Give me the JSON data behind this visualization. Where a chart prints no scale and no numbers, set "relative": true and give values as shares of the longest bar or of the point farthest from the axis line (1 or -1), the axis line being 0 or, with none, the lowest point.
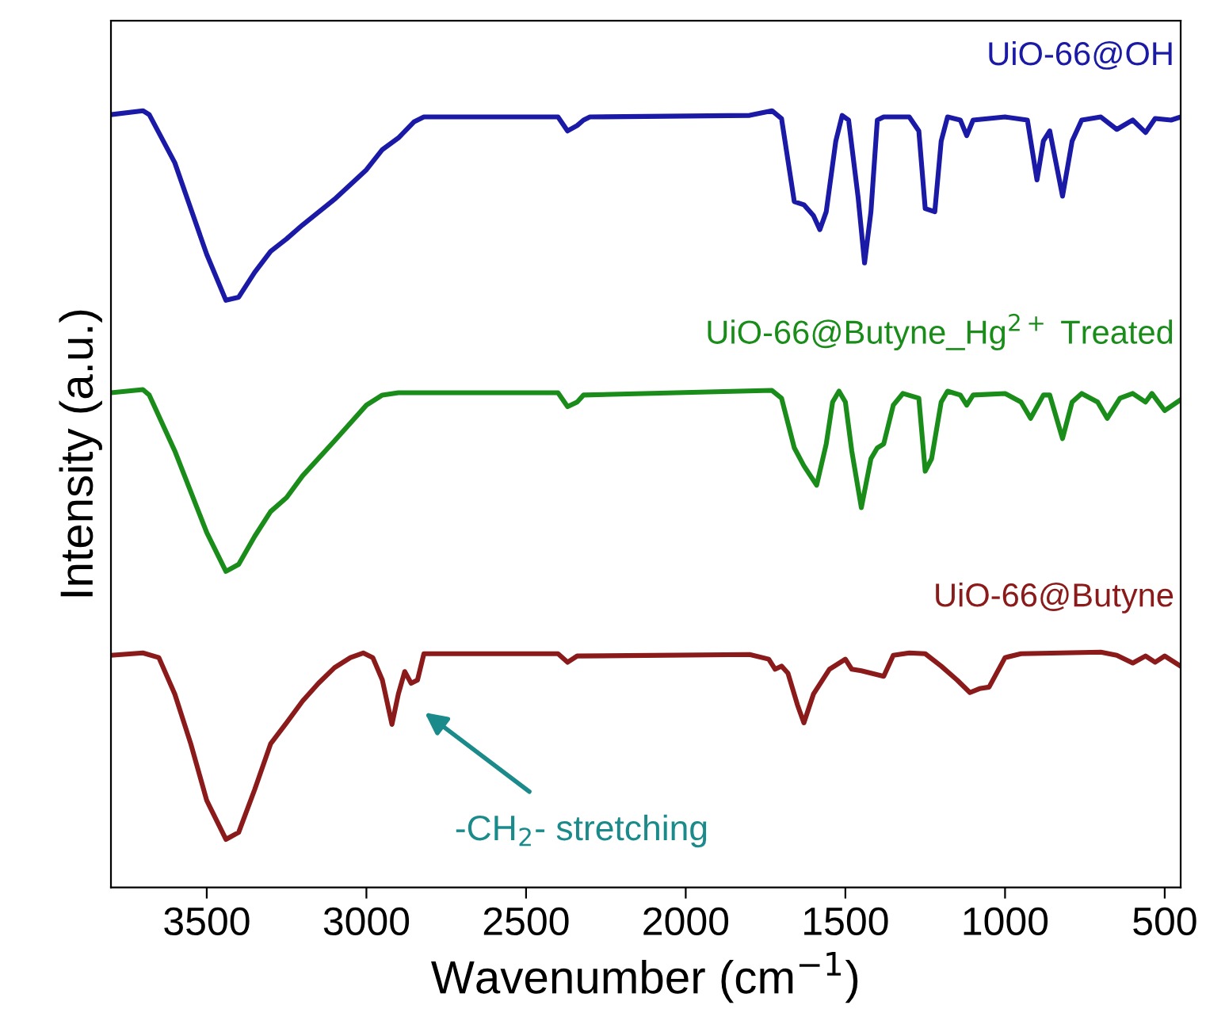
{
  "chart_data": {
    "type": "line",
    "relative": true,
    "tick_labels": "x",
    "grid": false,
    "legend": false,
    "xlabel": "Wavenumber (cm$^{−1}$)",
    "ylabel": "Intensity (a.u.)",
    "xlim": [
      3800,
      450
    ],
    "xticks": [
      3500,
      3000,
      2500,
      2000,
      1500,
      1000,
      500
    ],
    "annotations": [
      "-CH$_{2}$- stretching"
    ],
    "series": [
      {
        "name": "UiO-66@OH",
        "color": "#1a1aa6",
        "x": [
          3800,
          3700,
          3680,
          3600,
          3500,
          3440,
          3400,
          3350,
          3300,
          3250,
          3200,
          3100,
          3000,
          2950,
          2900,
          2850,
          2820,
          2700,
          2400,
          2370,
          2340,
          2320,
          2300,
          1800,
          1730,
          1700,
          1660,
          1630,
          1600,
          1580,
          1560,
          1530,
          1510,
          1490,
          1460,
          1440,
          1420,
          1400,
          1380,
          1300,
          1270,
          1250,
          1220,
          1200,
          1180,
          1140,
          1120,
          1100,
          1000,
          930,
          900,
          880,
          860,
          820,
          790,
          760,
          700,
          650,
          600,
          560,
          530,
          480,
          450
        ],
        "values": [
          0.995,
          1.0,
          0.995,
          0.933,
          0.815,
          0.756,
          0.76,
          0.792,
          0.819,
          0.835,
          0.853,
          0.886,
          0.924,
          0.95,
          0.965,
          0.986,
          0.992,
          0.992,
          0.992,
          0.974,
          0.981,
          0.988,
          0.992,
          0.994,
          1.0,
          0.99,
          0.883,
          0.879,
          0.865,
          0.847,
          0.87,
          0.961,
          0.994,
          0.988,
          0.888,
          0.804,
          0.87,
          0.988,
          0.992,
          0.992,
          0.974,
          0.874,
          0.87,
          0.961,
          0.992,
          0.988,
          0.968,
          0.988,
          0.992,
          0.988,
          0.911,
          0.961,
          0.974,
          0.89,
          0.961,
          0.988,
          0.992,
          0.976,
          0.988,
          0.972,
          0.99,
          0.988,
          0.992
        ]
      },
      {
        "name": "UiO-66@Butyne_Hg$^{2+}$ Treated",
        "color": "#1a8c1a",
        "x": [
          3800,
          3700,
          3680,
          3600,
          3500,
          3440,
          3400,
          3350,
          3300,
          3250,
          3200,
          3100,
          3000,
          2950,
          2900,
          2400,
          2370,
          2340,
          2320,
          1730,
          1700,
          1660,
          1630,
          1590,
          1560,
          1540,
          1520,
          1500,
          1480,
          1450,
          1420,
          1400,
          1380,
          1350,
          1320,
          1270,
          1250,
          1230,
          1200,
          1180,
          1140,
          1120,
          1100,
          1000,
          950,
          920,
          880,
          860,
          820,
          790,
          760,
          710,
          680,
          640,
          600,
          560,
          540,
          500,
          450
        ],
        "values": [
          0.637,
          0.641,
          0.634,
          0.562,
          0.457,
          0.407,
          0.416,
          0.452,
          0.484,
          0.502,
          0.53,
          0.575,
          0.621,
          0.634,
          0.637,
          0.637,
          0.619,
          0.625,
          0.634,
          0.64,
          0.63,
          0.566,
          0.543,
          0.518,
          0.571,
          0.625,
          0.639,
          0.625,
          0.562,
          0.489,
          0.552,
          0.566,
          0.571,
          0.621,
          0.636,
          0.63,
          0.536,
          0.552,
          0.625,
          0.639,
          0.634,
          0.621,
          0.634,
          0.636,
          0.625,
          0.604,
          0.634,
          0.634,
          0.578,
          0.625,
          0.636,
          0.625,
          0.604,
          0.63,
          0.636,
          0.625,
          0.636,
          0.614,
          0.628
        ]
      },
      {
        "name": "UiO-66@Butyne",
        "color": "#8b1a1a",
        "x": [
          3800,
          3700,
          3650,
          3600,
          3550,
          3500,
          3440,
          3400,
          3350,
          3300,
          3250,
          3200,
          3150,
          3100,
          3050,
          3010,
          2980,
          2950,
          2920,
          2900,
          2880,
          2860,
          2840,
          2820,
          2400,
          2370,
          2340,
          1800,
          1740,
          1720,
          1700,
          1680,
          1650,
          1630,
          1600,
          1550,
          1500,
          1480,
          1450,
          1400,
          1380,
          1350,
          1300,
          1250,
          1200,
          1150,
          1110,
          1080,
          1050,
          1000,
          950,
          700,
          650,
          600,
          560,
          530,
          500,
          450
        ],
        "values": [
          0.299,
          0.302,
          0.296,
          0.249,
          0.185,
          0.112,
          0.062,
          0.071,
          0.126,
          0.185,
          0.212,
          0.24,
          0.263,
          0.283,
          0.296,
          0.302,
          0.296,
          0.267,
          0.21,
          0.249,
          0.278,
          0.263,
          0.267,
          0.301,
          0.301,
          0.29,
          0.298,
          0.3,
          0.294,
          0.281,
          0.285,
          0.276,
          0.235,
          0.212,
          0.249,
          0.281,
          0.294,
          0.281,
          0.279,
          0.274,
          0.272,
          0.299,
          0.302,
          0.301,
          0.285,
          0.267,
          0.251,
          0.256,
          0.258,
          0.296,
          0.301,
          0.303,
          0.299,
          0.289,
          0.298,
          0.29,
          0.298,
          0.285
        ]
      }
    ]
  }
}
